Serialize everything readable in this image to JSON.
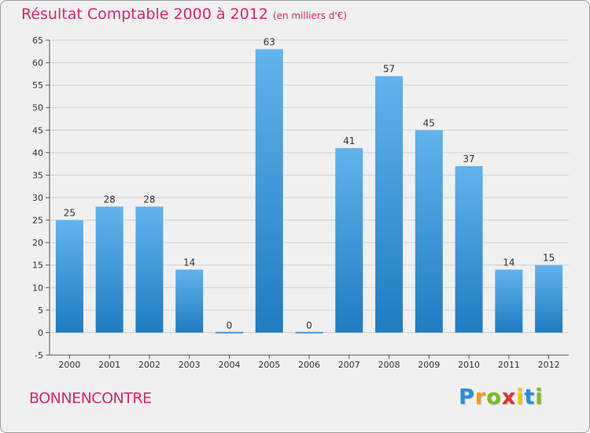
{
  "chart_data": {
    "type": "bar",
    "title": "Résultat Comptable 2000 à 2012",
    "subtitle": "(en milliers d'€)",
    "categories": [
      "2000",
      "2001",
      "2002",
      "2003",
      "2004",
      "2005",
      "2006",
      "2007",
      "2008",
      "2009",
      "2010",
      "2011",
      "2012"
    ],
    "values": [
      25,
      28,
      28,
      14,
      0,
      63,
      0,
      41,
      57,
      45,
      37,
      14,
      15
    ],
    "ylim": [
      -5,
      65
    ],
    "yticks": [
      -5,
      0,
      5,
      10,
      15,
      20,
      25,
      30,
      35,
      40,
      45,
      50,
      55,
      60,
      65
    ],
    "grid": true,
    "xlabel": "",
    "ylabel": ""
  },
  "commune_name": "BONNENCONTRE",
  "logo": {
    "letters": [
      "P",
      "r",
      "o",
      "x",
      "i",
      "t",
      "i"
    ],
    "colors": [
      "#2a8fd6",
      "#f39c12",
      "#7cb828",
      "#e03030",
      "#f1c40f",
      "#2a8fd6",
      "#7cb828"
    ]
  },
  "colors": {
    "bar_light": "#62b3ec",
    "bar_dark": "#1e7cc0",
    "accent": "#d4286c",
    "grid": "#cfcfcf"
  }
}
